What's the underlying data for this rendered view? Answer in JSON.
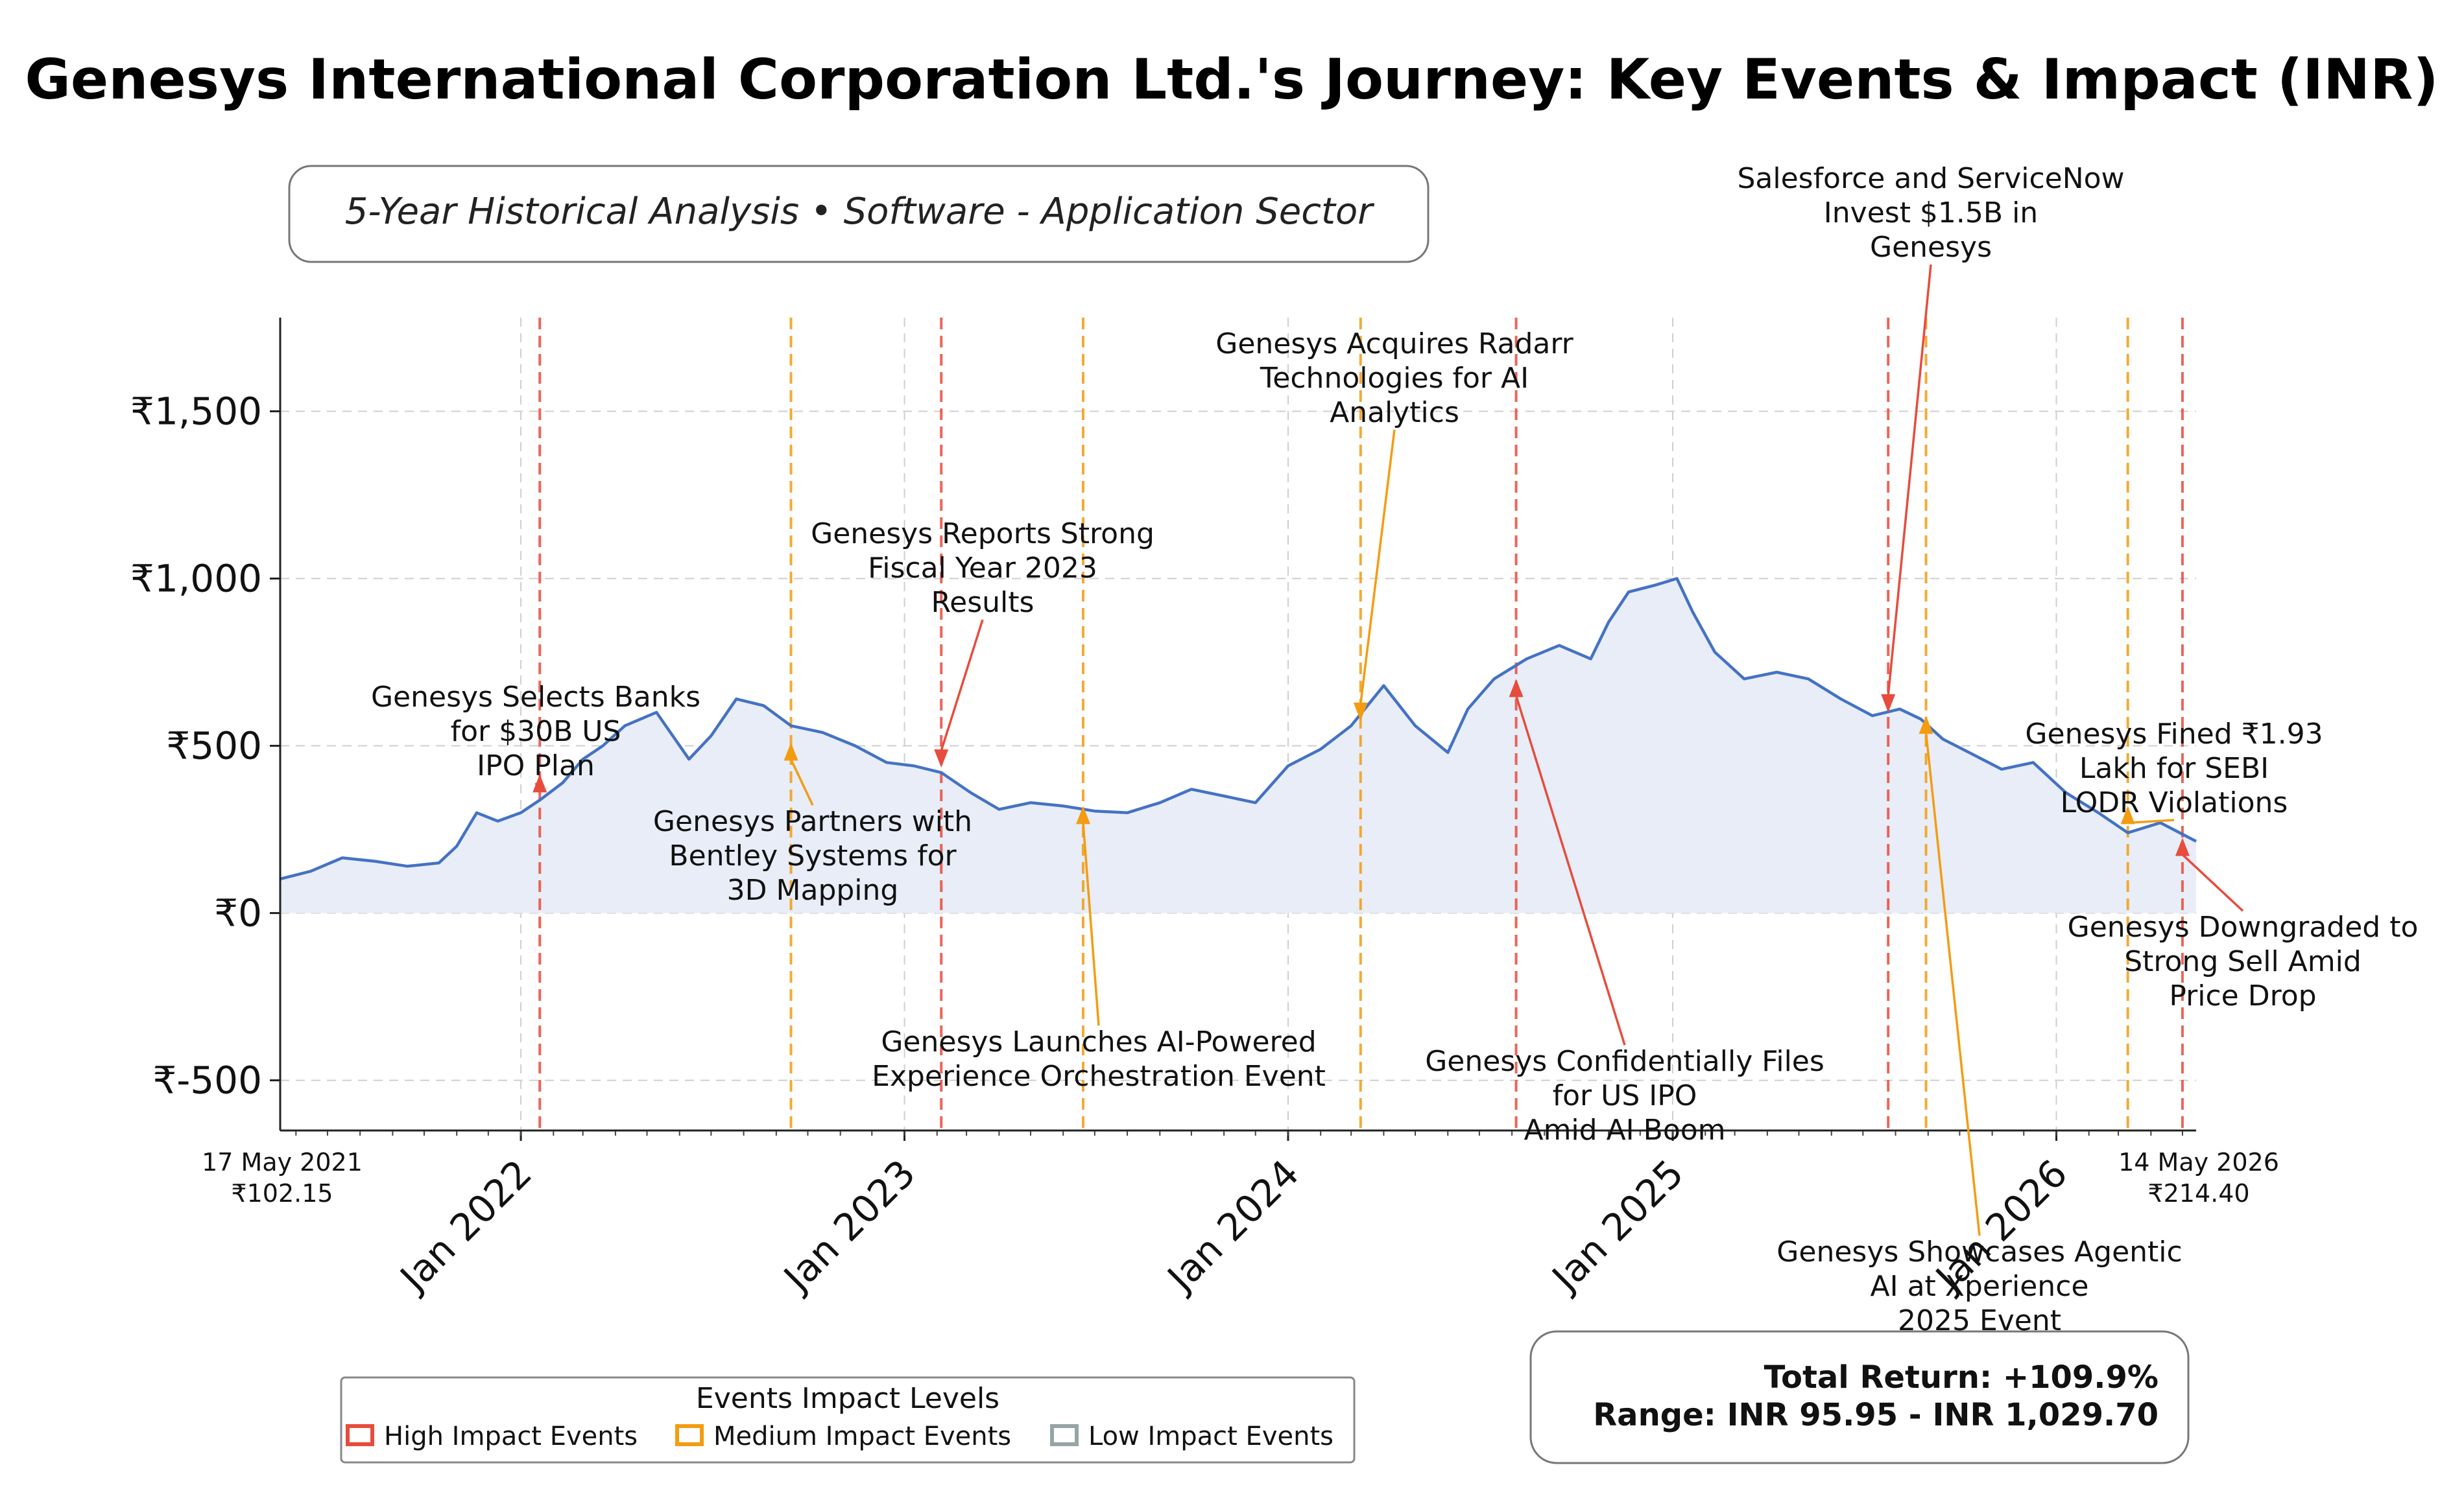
{
  "chart_data": {
    "type": "line",
    "title": "Genesys International Corporation Ltd.'s Journey: Key Events & Impact (INR)",
    "subtitle": "5-Year Historical Analysis • Software - Application Sector",
    "xlabel": "",
    "ylabel": "",
    "ylim": [
      -650,
      1780
    ],
    "xlim": [
      "2021-05-17",
      "2026-05-14"
    ],
    "grid": true,
    "y_ticks": [
      {
        "value": -500,
        "label": "₹-500"
      },
      {
        "value": 0,
        "label": "₹0"
      },
      {
        "value": 500,
        "label": "₹500"
      },
      {
        "value": 1000,
        "label": "₹1,000"
      },
      {
        "value": 1500,
        "label": "₹1,500"
      }
    ],
    "x_ticks": [
      {
        "date": "2022-01-01",
        "label": "Jan 2022"
      },
      {
        "date": "2023-01-01",
        "label": "Jan 2023"
      },
      {
        "date": "2024-01-01",
        "label": "Jan 2024"
      },
      {
        "date": "2025-01-01",
        "label": "Jan 2025"
      },
      {
        "date": "2026-01-01",
        "label": "Jan 2026"
      }
    ],
    "series": [
      {
        "color": "#4472c4",
        "points": [
          [
            "2021-05-17",
            102.15
          ],
          [
            "2021-06-15",
            125
          ],
          [
            "2021-07-15",
            165
          ],
          [
            "2021-08-15",
            155
          ],
          [
            "2021-09-15",
            140
          ],
          [
            "2021-10-15",
            150
          ],
          [
            "2021-11-01",
            200
          ],
          [
            "2021-11-20",
            300
          ],
          [
            "2021-12-10",
            275
          ],
          [
            "2022-01-01",
            300
          ],
          [
            "2022-01-20",
            340
          ],
          [
            "2022-02-10",
            390
          ],
          [
            "2022-03-01",
            460
          ],
          [
            "2022-03-20",
            500
          ],
          [
            "2022-04-10",
            560
          ],
          [
            "2022-05-10",
            600
          ],
          [
            "2022-06-10",
            460
          ],
          [
            "2022-07-01",
            530
          ],
          [
            "2022-07-25",
            640
          ],
          [
            "2022-08-20",
            620
          ],
          [
            "2022-09-15",
            560
          ],
          [
            "2022-10-15",
            540
          ],
          [
            "2022-11-15",
            500
          ],
          [
            "2022-12-15",
            450
          ],
          [
            "2023-01-10",
            440
          ],
          [
            "2023-02-05",
            420
          ],
          [
            "2023-03-05",
            360
          ],
          [
            "2023-04-01",
            310
          ],
          [
            "2023-05-01",
            330
          ],
          [
            "2023-06-01",
            320
          ],
          [
            "2023-07-01",
            305
          ],
          [
            "2023-08-01",
            300
          ],
          [
            "2023-09-01",
            330
          ],
          [
            "2023-10-01",
            370
          ],
          [
            "2023-11-01",
            350
          ],
          [
            "2023-12-01",
            330
          ],
          [
            "2024-01-01",
            440
          ],
          [
            "2024-02-01",
            490
          ],
          [
            "2024-03-01",
            560
          ],
          [
            "2024-04-01",
            680
          ],
          [
            "2024-05-01",
            560
          ],
          [
            "2024-06-01",
            480
          ],
          [
            "2024-06-20",
            610
          ],
          [
            "2024-07-15",
            700
          ],
          [
            "2024-08-15",
            760
          ],
          [
            "2024-09-15",
            800
          ],
          [
            "2024-10-15",
            760
          ],
          [
            "2024-11-01",
            870
          ],
          [
            "2024-11-20",
            960
          ],
          [
            "2024-12-15",
            980
          ],
          [
            "2025-01-05",
            1000
          ],
          [
            "2025-01-20",
            900
          ],
          [
            "2025-02-10",
            780
          ],
          [
            "2025-03-10",
            700
          ],
          [
            "2025-04-10",
            720
          ],
          [
            "2025-05-10",
            700
          ],
          [
            "2025-06-10",
            640
          ],
          [
            "2025-07-10",
            590
          ],
          [
            "2025-08-05",
            610
          ],
          [
            "2025-08-25",
            580
          ],
          [
            "2025-09-15",
            520
          ],
          [
            "2025-10-10",
            480
          ],
          [
            "2025-11-10",
            430
          ],
          [
            "2025-12-10",
            450
          ],
          [
            "2026-01-10",
            360
          ],
          [
            "2026-02-10",
            300
          ],
          [
            "2026-03-10",
            240
          ],
          [
            "2026-04-10",
            270
          ],
          [
            "2026-05-14",
            214.4
          ]
        ]
      }
    ],
    "annotations": [
      {
        "date": "2022-01-19",
        "value": 415,
        "impact": "high",
        "text": "Genesys Selects Banks for $30B US IPO Plan",
        "lines": [
          "Genesys Selects Banks",
          "for $30B US",
          "IPO Plan"
        ]
      },
      {
        "date": "2022-09-15",
        "value": 510,
        "impact": "medium",
        "text": "Genesys Partners with Bentley Systems for 3D Mapping",
        "lines": [
          "Genesys Partners with",
          "Bentley Systems for",
          "3D Mapping"
        ]
      },
      {
        "date": "2023-02-05",
        "value": 435,
        "impact": "high",
        "text": "Genesys Reports Strong Fiscal Year 2023 Results",
        "lines": [
          "Genesys Reports Strong",
          "Fiscal Year 2023",
          "Results"
        ]
      },
      {
        "date": "2023-06-20",
        "value": 320,
        "impact": "medium",
        "text": "Genesys Launches AI-Powered Experience Orchestration Event",
        "lines": [
          "Genesys Launches AI-Powered",
          "Experience Orchestration Event"
        ]
      },
      {
        "date": "2024-03-10",
        "value": 575,
        "impact": "medium",
        "text": "Genesys Acquires Radarr Technologies for AI Analytics",
        "lines": [
          "Genesys Acquires Radarr",
          "Technologies for AI",
          "Analytics"
        ]
      },
      {
        "date": "2024-08-05",
        "value": 700,
        "impact": "high",
        "text": "Genesys Confidentially Files for US IPO Amid AI Boom",
        "lines": [
          "Genesys Confidentially Files",
          "for US IPO",
          "Amid AI Boom"
        ]
      },
      {
        "date": "2025-07-25",
        "value": 600,
        "impact": "high",
        "text": "Salesforce and ServiceNow Invest $1.5B in Genesys",
        "lines": [
          "Salesforce and ServiceNow",
          "Invest $1.5B in",
          "Genesys"
        ]
      },
      {
        "date": "2025-08-30",
        "value": 590,
        "impact": "medium",
        "text": "Genesys Showcases Agentic AI at Xperience 2025 Event",
        "lines": [
          "Genesys Showcases Agentic",
          "AI at Xperience",
          "2025 Event"
        ]
      },
      {
        "date": "2026-03-10",
        "value": 320,
        "impact": "medium",
        "text": "Genesys Fined ₹1.93 Lakh for SEBI LODR Violations",
        "lines": [
          "Genesys Fined ₹1.93",
          "Lakh for SEBI",
          "LODR Violations"
        ]
      },
      {
        "date": "2026-05-01",
        "value": 225,
        "impact": "high",
        "text": "Genesys Downgraded to Strong Sell Amid Price Drop",
        "lines": [
          "Genesys Downgraded to",
          "Strong Sell Amid",
          "Price Drop"
        ]
      }
    ],
    "start_label": {
      "date": "17 May 2021",
      "price": "₹102.15"
    },
    "end_label": {
      "date": "14 May 2026",
      "price": "₹214.40"
    },
    "legend": {
      "title": "Events Impact Levels",
      "placement": "bottom-left",
      "items": [
        {
          "label": "High Impact Events",
          "color": "#e74c3c"
        },
        {
          "label": "Medium Impact Events",
          "color": "#f39c12"
        },
        {
          "label": "Low Impact Events",
          "color": "#95a5a6"
        }
      ]
    },
    "stats": {
      "total_return": "Total Return: +109.9%",
      "range": "Range: INR 95.95 - INR 1,029.70"
    },
    "colors": {
      "line": "#4472c4",
      "fill": "#e8edf7",
      "high": "#e74c3c",
      "medium": "#f39c12",
      "low": "#95a5a6"
    }
  }
}
